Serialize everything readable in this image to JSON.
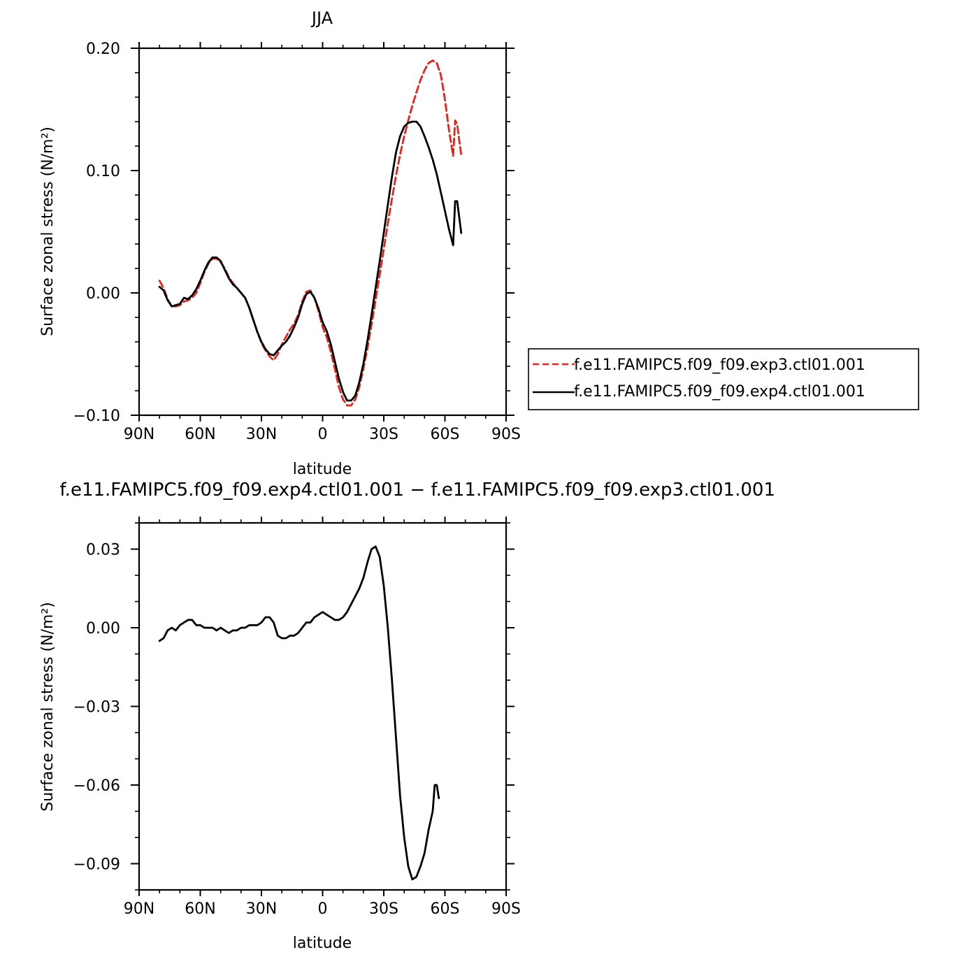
{
  "figure": {
    "top_title": "JJA",
    "bottom_title": "f.e11.FAMIPC5.f09_f09.exp4.ctl01.001  −  f.e11.FAMIPC5.f09_f09.exp3.ctl01.001"
  },
  "colors": {
    "exp3": "#e8231b",
    "exp4": "#000000"
  },
  "chart_data": [
    {
      "type": "line",
      "title": "JJA",
      "xlabel": "latitude",
      "ylabel": "Surface zonal stress (N/m²)",
      "xlim": [
        90,
        -90
      ],
      "ylim": [
        -0.1,
        0.2
      ],
      "x_ticks": [
        90,
        60,
        30,
        0,
        -30,
        -60,
        -90
      ],
      "x_tick_labels": [
        "90N",
        "60N",
        "30N",
        "0",
        "30S",
        "60S",
        "90S"
      ],
      "y_ticks": [
        -0.1,
        0.0,
        0.1,
        0.2
      ],
      "y_tick_labels": [
        "−0.10",
        "0.00",
        "0.10",
        "0.20"
      ],
      "legend_position": "right",
      "series": [
        {
          "name": "f.e11.FAMIPC5.f09_f09.exp3.ctl01.001",
          "color": "#e8231b",
          "dash": true,
          "points": [
            [
              80,
              0.01
            ],
            [
              78,
              0.004
            ],
            [
              76,
              -0.005
            ],
            [
              74,
              -0.011
            ],
            [
              72,
              -0.011
            ],
            [
              70,
              -0.01
            ],
            [
              68,
              -0.007
            ],
            [
              66,
              -0.006
            ],
            [
              64,
              -0.004
            ],
            [
              62,
              0.0
            ],
            [
              60,
              0.008
            ],
            [
              58,
              0.017
            ],
            [
              56,
              0.024
            ],
            [
              54,
              0.028
            ],
            [
              52,
              0.028
            ],
            [
              50,
              0.025
            ],
            [
              48,
              0.02
            ],
            [
              46,
              0.013
            ],
            [
              44,
              0.008
            ],
            [
              42,
              0.004
            ],
            [
              40,
              0.0
            ],
            [
              38,
              -0.004
            ],
            [
              36,
              -0.012
            ],
            [
              34,
              -0.022
            ],
            [
              32,
              -0.032
            ],
            [
              30,
              -0.041
            ],
            [
              28,
              -0.047
            ],
            [
              26,
              -0.052
            ],
            [
              24,
              -0.055
            ],
            [
              22,
              -0.05
            ],
            [
              20,
              -0.042
            ],
            [
              18,
              -0.036
            ],
            [
              16,
              -0.03
            ],
            [
              14,
              -0.025
            ],
            [
              12,
              -0.018
            ],
            [
              10,
              -0.007
            ],
            [
              8,
              0.001
            ],
            [
              6,
              0.002
            ],
            [
              4,
              -0.004
            ],
            [
              2,
              -0.015
            ],
            [
              0,
              -0.028
            ],
            [
              -2,
              -0.036
            ],
            [
              -4,
              -0.048
            ],
            [
              -6,
              -0.062
            ],
            [
              -8,
              -0.077
            ],
            [
              -10,
              -0.087
            ],
            [
              -12,
              -0.092
            ],
            [
              -14,
              -0.092
            ],
            [
              -16,
              -0.087
            ],
            [
              -18,
              -0.077
            ],
            [
              -20,
              -0.062
            ],
            [
              -22,
              -0.045
            ],
            [
              -24,
              -0.026
            ],
            [
              -26,
              -0.006
            ],
            [
              -28,
              0.015
            ],
            [
              -30,
              0.036
            ],
            [
              -32,
              0.057
            ],
            [
              -34,
              0.077
            ],
            [
              -36,
              0.096
            ],
            [
              -38,
              0.113
            ],
            [
              -40,
              0.128
            ],
            [
              -42,
              0.141
            ],
            [
              -44,
              0.153
            ],
            [
              -46,
              0.164
            ],
            [
              -48,
              0.174
            ],
            [
              -50,
              0.182
            ],
            [
              -52,
              0.188
            ],
            [
              -54,
              0.19
            ],
            [
              -56,
              0.188
            ],
            [
              -58,
              0.178
            ],
            [
              -60,
              0.158
            ],
            [
              -62,
              0.133
            ],
            [
              -64,
              0.112
            ],
            [
              -65,
              0.141
            ],
            [
              -66,
              0.138
            ],
            [
              -67,
              0.125
            ],
            [
              -68,
              0.113
            ]
          ]
        },
        {
          "name": "f.e11.FAMIPC5.f09_f09.exp4.ctl01.001",
          "color": "#000000",
          "dash": false,
          "points": [
            [
              80,
              0.005
            ],
            [
              78,
              0.002
            ],
            [
              76,
              -0.006
            ],
            [
              74,
              -0.011
            ],
            [
              72,
              -0.01
            ],
            [
              70,
              -0.009
            ],
            [
              68,
              -0.004
            ],
            [
              66,
              -0.005
            ],
            [
              64,
              -0.002
            ],
            [
              62,
              0.003
            ],
            [
              60,
              0.01
            ],
            [
              58,
              0.018
            ],
            [
              56,
              0.025
            ],
            [
              54,
              0.029
            ],
            [
              52,
              0.029
            ],
            [
              50,
              0.026
            ],
            [
              48,
              0.019
            ],
            [
              46,
              0.012
            ],
            [
              44,
              0.007
            ],
            [
              42,
              0.004
            ],
            [
              40,
              0.0
            ],
            [
              38,
              -0.004
            ],
            [
              36,
              -0.012
            ],
            [
              34,
              -0.022
            ],
            [
              32,
              -0.032
            ],
            [
              30,
              -0.04
            ],
            [
              28,
              -0.046
            ],
            [
              26,
              -0.05
            ],
            [
              24,
              -0.051
            ],
            [
              22,
              -0.047
            ],
            [
              20,
              -0.043
            ],
            [
              18,
              -0.04
            ],
            [
              16,
              -0.035
            ],
            [
              14,
              -0.028
            ],
            [
              12,
              -0.02
            ],
            [
              10,
              -0.009
            ],
            [
              8,
              -0.001
            ],
            [
              6,
              0.001
            ],
            [
              4,
              -0.004
            ],
            [
              2,
              -0.013
            ],
            [
              0,
              -0.024
            ],
            [
              -2,
              -0.031
            ],
            [
              -4,
              -0.042
            ],
            [
              -6,
              -0.056
            ],
            [
              -8,
              -0.07
            ],
            [
              -10,
              -0.081
            ],
            [
              -12,
              -0.088
            ],
            [
              -14,
              -0.088
            ],
            [
              -16,
              -0.084
            ],
            [
              -18,
              -0.073
            ],
            [
              -20,
              -0.058
            ],
            [
              -22,
              -0.039
            ],
            [
              -24,
              -0.018
            ],
            [
              -26,
              0.004
            ],
            [
              -28,
              0.026
            ],
            [
              -30,
              0.049
            ],
            [
              -32,
              0.072
            ],
            [
              -34,
              0.095
            ],
            [
              -36,
              0.115
            ],
            [
              -38,
              0.128
            ],
            [
              -40,
              0.136
            ],
            [
              -42,
              0.139
            ],
            [
              -44,
              0.14
            ],
            [
              -46,
              0.14
            ],
            [
              -48,
              0.136
            ],
            [
              -50,
              0.128
            ],
            [
              -52,
              0.119
            ],
            [
              -54,
              0.109
            ],
            [
              -56,
              0.097
            ],
            [
              -58,
              0.082
            ],
            [
              -60,
              0.067
            ],
            [
              -62,
              0.052
            ],
            [
              -64,
              0.039
            ],
            [
              -65,
              0.075
            ],
            [
              -66,
              0.075
            ],
            [
              -67,
              0.062
            ],
            [
              -68,
              0.049
            ]
          ]
        }
      ]
    },
    {
      "type": "line",
      "title": "f.e11.FAMIPC5.f09_f09.exp4.ctl01.001  −  f.e11.FAMIPC5.f09_f09.exp3.ctl01.001",
      "xlabel": "latitude",
      "ylabel": "Surface zonal stress (N/m²)",
      "xlim": [
        90,
        -90
      ],
      "ylim": [
        -0.1,
        0.04
      ],
      "x_ticks": [
        90,
        60,
        30,
        0,
        -30,
        -60,
        -90
      ],
      "x_tick_labels": [
        "90N",
        "60N",
        "30N",
        "0",
        "30S",
        "60S",
        "90S"
      ],
      "y_ticks": [
        -0.09,
        -0.06,
        -0.03,
        0.0,
        0.03
      ],
      "y_tick_labels": [
        "−0.09",
        "−0.06",
        "−0.03",
        "0.00",
        "0.03"
      ],
      "series": [
        {
          "name": "",
          "color": "#000000",
          "dash": false,
          "points": [
            [
              80,
              -0.005
            ],
            [
              78,
              -0.004
            ],
            [
              76,
              -0.001
            ],
            [
              74,
              0.0
            ],
            [
              72,
              -0.001
            ],
            [
              70,
              0.001
            ],
            [
              68,
              0.002
            ],
            [
              66,
              0.003
            ],
            [
              64,
              0.003
            ],
            [
              62,
              0.001
            ],
            [
              60,
              0.001
            ],
            [
              58,
              0.0
            ],
            [
              56,
              0.0
            ],
            [
              54,
              0.0
            ],
            [
              52,
              -0.001
            ],
            [
              50,
              0.0
            ],
            [
              48,
              -0.001
            ],
            [
              46,
              -0.002
            ],
            [
              44,
              -0.001
            ],
            [
              42,
              -0.001
            ],
            [
              40,
              0.0
            ],
            [
              38,
              0.0
            ],
            [
              36,
              0.001
            ],
            [
              34,
              0.001
            ],
            [
              32,
              0.001
            ],
            [
              30,
              0.002
            ],
            [
              28,
              0.004
            ],
            [
              26,
              0.004
            ],
            [
              24,
              0.002
            ],
            [
              22,
              -0.003
            ],
            [
              20,
              -0.004
            ],
            [
              18,
              -0.004
            ],
            [
              16,
              -0.003
            ],
            [
              14,
              -0.003
            ],
            [
              12,
              -0.002
            ],
            [
              10,
              0.0
            ],
            [
              8,
              0.002
            ],
            [
              6,
              0.002
            ],
            [
              4,
              0.004
            ],
            [
              2,
              0.005
            ],
            [
              0,
              0.006
            ],
            [
              -2,
              0.005
            ],
            [
              -4,
              0.004
            ],
            [
              -6,
              0.003
            ],
            [
              -8,
              0.003
            ],
            [
              -10,
              0.004
            ],
            [
              -12,
              0.006
            ],
            [
              -14,
              0.009
            ],
            [
              -16,
              0.012
            ],
            [
              -18,
              0.015
            ],
            [
              -20,
              0.019
            ],
            [
              -22,
              0.025
            ],
            [
              -24,
              0.03
            ],
            [
              -26,
              0.031
            ],
            [
              -28,
              0.027
            ],
            [
              -30,
              0.016
            ],
            [
              -32,
              0.0
            ],
            [
              -34,
              -0.02
            ],
            [
              -36,
              -0.042
            ],
            [
              -38,
              -0.064
            ],
            [
              -40,
              -0.08
            ],
            [
              -42,
              -0.091
            ],
            [
              -44,
              -0.096
            ],
            [
              -46,
              -0.095
            ],
            [
              -48,
              -0.091
            ],
            [
              -50,
              -0.086
            ],
            [
              -52,
              -0.077
            ],
            [
              -54,
              -0.07
            ],
            [
              -55,
              -0.06
            ],
            [
              -56,
              -0.06
            ],
            [
              -57,
              -0.065
            ]
          ]
        }
      ]
    }
  ]
}
